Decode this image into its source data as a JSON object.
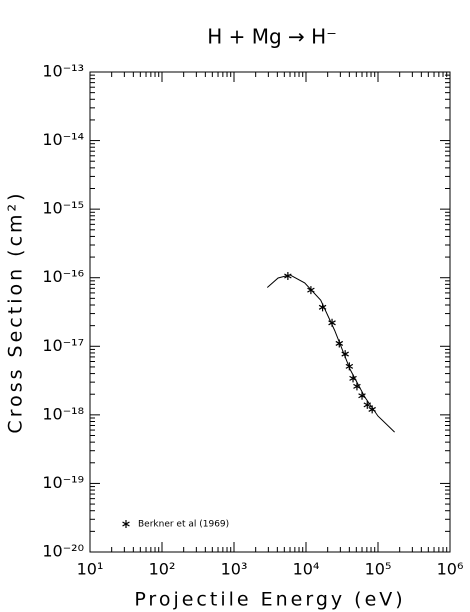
{
  "chart_data": {
    "type": "scatter",
    "title": "H + Mg → H⁻",
    "x_label": "Projectile Energy (eV)",
    "y_label": "Cross Section (cm²)",
    "log_x": true,
    "log_y": true,
    "xlim": [
      10,
      1000000
    ],
    "ylim": [
      1e-20,
      1e-13
    ],
    "xticks": [
      {
        "value": 10,
        "label": "10¹"
      },
      {
        "value": 100,
        "label": "10²"
      },
      {
        "value": 1000,
        "label": "10³"
      },
      {
        "value": 10000,
        "label": "10⁴"
      },
      {
        "value": 100000,
        "label": "10⁵"
      },
      {
        "value": 1000000,
        "label": "10⁶"
      }
    ],
    "yticks": [
      {
        "value": 1e-20,
        "label": "10⁻²⁰"
      },
      {
        "value": 1e-19,
        "label": "10⁻¹⁹"
      },
      {
        "value": 1e-18,
        "label": "10⁻¹⁸"
      },
      {
        "value": 1e-17,
        "label": "10⁻¹⁷"
      },
      {
        "value": 1e-16,
        "label": "10⁻¹⁶"
      },
      {
        "value": 1e-15,
        "label": "10⁻¹⁵"
      },
      {
        "value": 1e-14,
        "label": "10⁻¹⁴"
      },
      {
        "value": 1e-13,
        "label": "10⁻¹³"
      }
    ],
    "legend": "lower left",
    "series": [
      {
        "name": "Berkner et al (1969)",
        "color": "#000000",
        "marker": "asterisk",
        "x": [
          5600,
          11700,
          17000,
          23000,
          29000,
          35000,
          40000,
          45000,
          51000,
          60000,
          71000,
          83000
        ],
        "values": [
          1.06e-16,
          6.6e-17,
          3.7e-17,
          2.2e-17,
          1.1e-17,
          7.7e-18,
          5.1e-18,
          3.4e-18,
          2.6e-18,
          1.9e-18,
          1.4e-18,
          1.2e-18
        ]
      },
      {
        "color": "#000000",
        "marker": "line",
        "x": [
          2900,
          4100,
          6000,
          9600,
          16000,
          25000,
          41000,
          66000,
          100000,
          170000
        ],
        "values": [
          7.2e-17,
          9.9e-17,
          1.1e-16,
          8.4e-17,
          4.7e-17,
          1.7e-17,
          4.6e-18,
          1.8e-18,
          9.6e-19,
          5.6e-19
        ]
      }
    ]
  }
}
